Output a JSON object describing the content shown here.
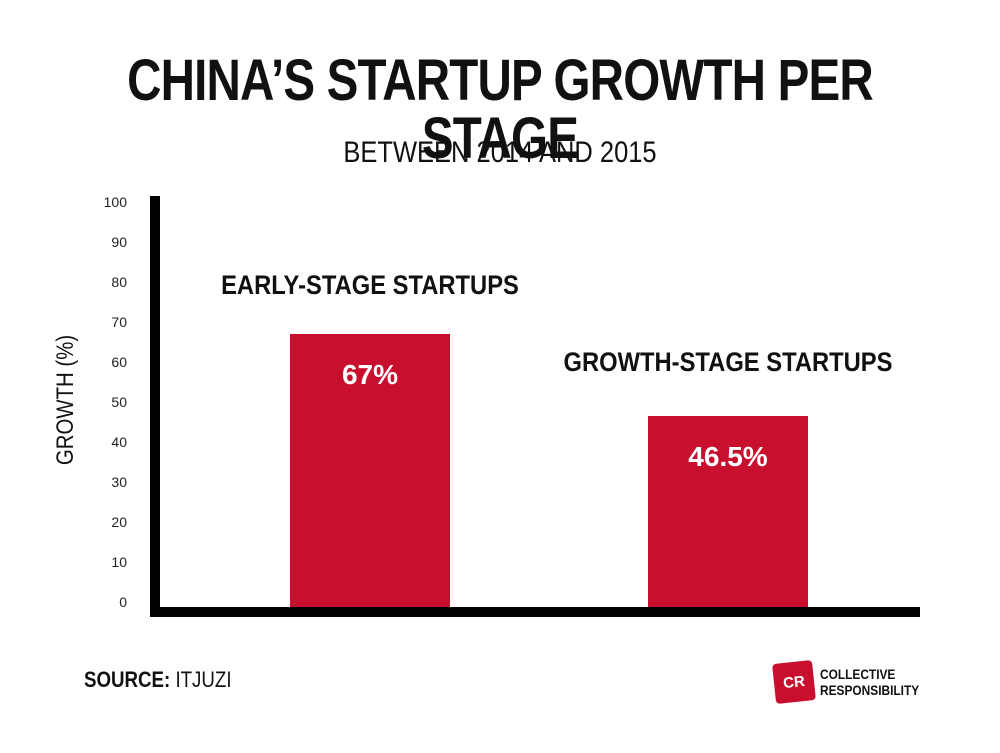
{
  "chart_data": {
    "type": "bar",
    "title": "CHINA’S STARTUP GROWTH PER STAGE",
    "subtitle": "BETWEEN 2014 AND 2015",
    "ylabel": "GROWTH (%)",
    "xlabel": "",
    "ylim": [
      0,
      100
    ],
    "yticks": [
      0,
      10,
      20,
      30,
      40,
      50,
      60,
      70,
      80,
      90,
      100
    ],
    "categories": [
      "EARLY-STAGE STARTUPS",
      "GROWTH-STAGE STARTUPS"
    ],
    "values": [
      67,
      46.5
    ],
    "data_labels": [
      "67%",
      "46.5%"
    ],
    "bar_color": "#c8102e",
    "grid": false,
    "legend": "none"
  },
  "source": {
    "label": "SOURCE:",
    "value": "ITJUZI"
  },
  "logo": {
    "mark": "CR",
    "line1": "COLLECTIVE",
    "line2": "RESPONSIBILITY",
    "color": "#c8102e"
  }
}
